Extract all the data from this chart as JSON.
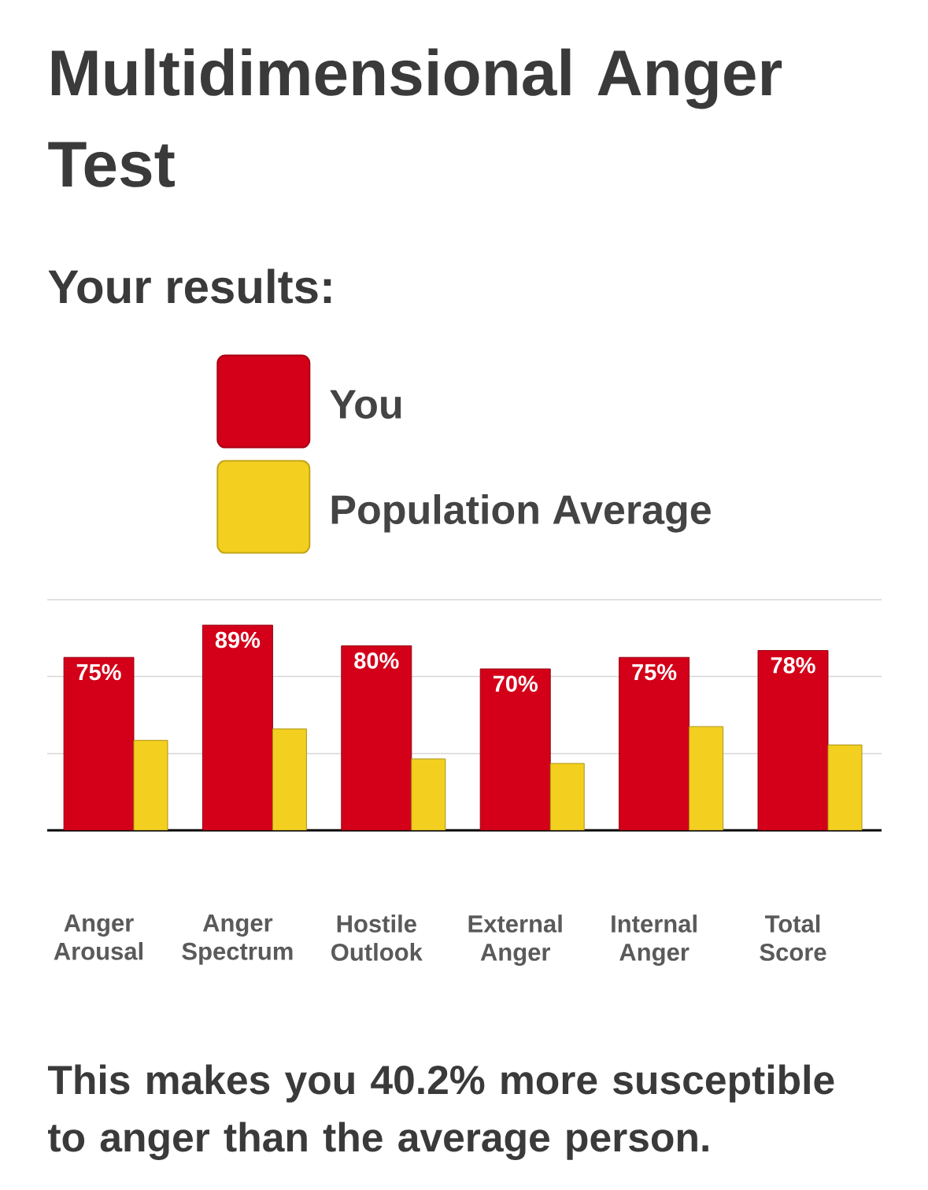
{
  "chart_data": {
    "type": "bar",
    "title": "Multidimensional Anger Test",
    "subtitle": "Your results:",
    "categories": [
      "Anger Arousal",
      "Anger Spectrum",
      "Hostile Outlook",
      "External Anger",
      "Internal Anger",
      "Total Score"
    ],
    "series": [
      {
        "name": "You",
        "color": "#d40019",
        "values": [
          75,
          89,
          80,
          70,
          75,
          78
        ],
        "value_labels": [
          "75%",
          "89%",
          "80%",
          "70%",
          "75%",
          "78%"
        ]
      },
      {
        "name": "Population Average",
        "color": "#f3d01f",
        "values": [
          39,
          44,
          31,
          29,
          45,
          37
        ]
      }
    ],
    "ylim": [
      0,
      100
    ],
    "yticks": [
      {
        "value": 33.3,
        "label": null
      },
      {
        "value": 66.7,
        "label": null
      },
      {
        "value": 100,
        "label": null
      }
    ],
    "grid": "y",
    "legend": "top",
    "tick_labels": "x",
    "annotations": [
      "This makes you 40.2% more susceptible to anger than the average person."
    ]
  }
}
